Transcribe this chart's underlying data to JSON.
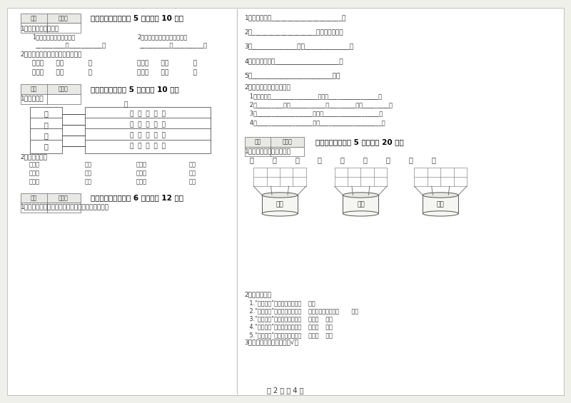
{
  "page_bg": "#f0f0eb",
  "content_bg": "#ffffff",
  "text_color": "#333333",
  "title_color": "#000000",
  "page_num": "第 2 页 共 4 页",
  "sec3_title": "三、识字写字（每题 5 分，共计 10 分）",
  "sec4_title": "四、连一连（每题 5 分，共计 10 分）",
  "sec5_title": "五、补充句子（每题 6 分，共计 12 分）",
  "sec6_title": "六、综合题（每题 5 分，共计 20 分）",
  "left_box_chars": [
    "远",
    "春",
    "人",
    "远"
  ],
  "right_box_texts": [
    "看  山  有  色  ，",
    "听  水  无  声  。",
    "去  花  还  在  ，",
    "来  鸟  不  惊  。"
  ],
  "word_rows": [
    [
      "轻轻的",
      "贝壳",
      "机灵的",
      "树草"
    ],
    [
      "雪白的",
      "步子",
      "翠绿的",
      "羽毛"
    ],
    [
      "青青的",
      "小虾",
      "蓬松的",
      "小鸟"
    ]
  ],
  "chars_row": [
    "子",
    "无",
    "目",
    "也",
    "出",
    "公",
    "长",
    "失",
    "马"
  ],
  "pot_labels": [
    "三画",
    "四画",
    "五画"
  ],
  "pot_centers": [
    0.49,
    0.632,
    0.772
  ],
  "know_lines": [
    "   1. 又大又多，写数量的字是（    ）。",
    "   2. 又大又红，写颜色的字是（    ）；写形状的起是（       ）。",
    "   3. 又大又红 相对的词语是又（    ）又（    ）。",
    "   4. 又大又圆 相对的词语是又（    ）又（    ）。",
    "   5. 又大又多 相对的词语是又（    ）又（    ）。"
  ]
}
